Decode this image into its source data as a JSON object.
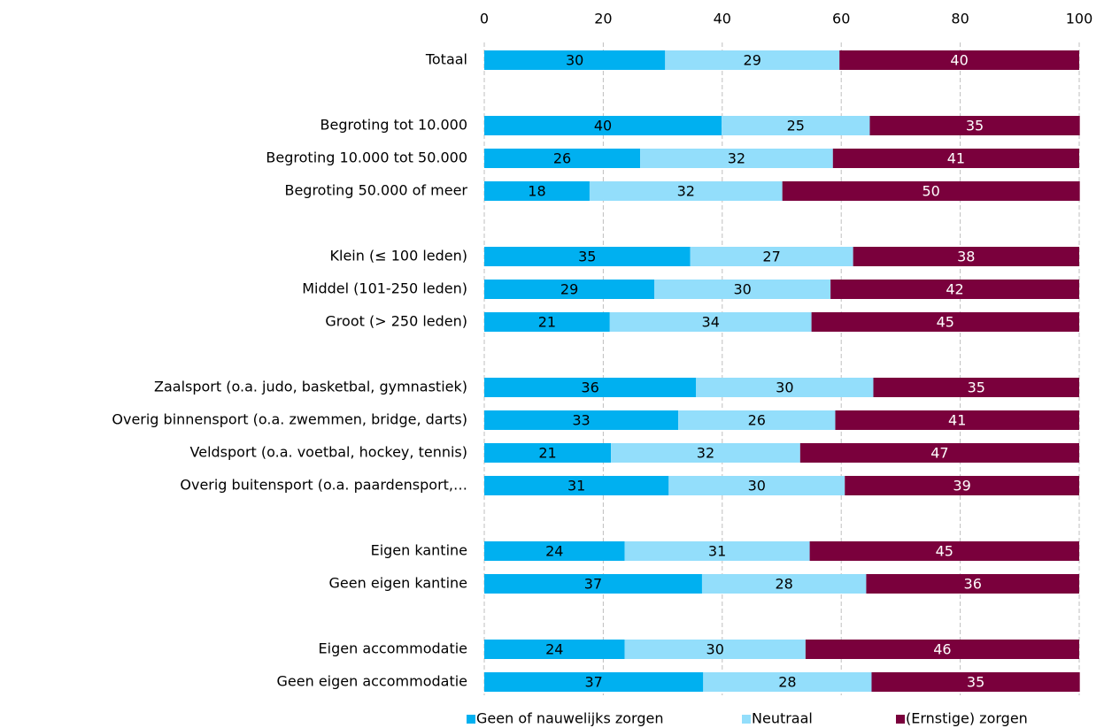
{
  "chart_data": {
    "type": "stacked-bar-horizontal",
    "categories": [
      "Totaal",
      null,
      "Begroting tot 10.000",
      "Begroting 10.000 tot 50.000",
      "Begroting 50.000 of meer",
      null,
      "Klein (≤ 100 leden)",
      "Middel (101-250 leden)",
      "Groot (> 250 leden)",
      null,
      "Zaalsport (o.a. judo, basketbal, gymnastiek)",
      "Overig binnensport (o.a. zwemmen, bridge, darts)",
      "Veldsport (o.a. voetbal, hockey, tennis)",
      "Overig buitensport (o.a. paardensport,…",
      null,
      "Eigen kantine",
      "Geen eigen kantine",
      null,
      "Eigen accommodatie",
      "Geen eigen accommodatie"
    ],
    "series": [
      {
        "name": "Geen of nauwelijks zorgen",
        "color": "#00b0f0",
        "label_color": "#000000",
        "values": [
          30.4,
          null,
          39.9,
          26.2,
          17.7,
          null,
          34.6,
          28.6,
          21.1,
          null,
          35.6,
          32.6,
          21.3,
          31.0,
          null,
          23.6,
          36.6,
          null,
          23.6,
          36.8
        ],
        "value_labels": [
          "30",
          null,
          "40",
          "26",
          "18",
          null,
          "35",
          "29",
          "21",
          null,
          "36",
          "33",
          "21",
          "31",
          null,
          "24",
          "37",
          null,
          "24",
          "37"
        ]
      },
      {
        "name": "Neutraal",
        "color": "#93defb",
        "label_color": "#000000",
        "values": [
          29.3,
          null,
          24.9,
          32.4,
          32.4,
          null,
          27.4,
          29.6,
          33.9,
          null,
          29.8,
          26.4,
          31.8,
          29.6,
          null,
          31.1,
          27.6,
          null,
          30.4,
          28.3
        ],
        "value_labels": [
          "29",
          null,
          "25",
          "32",
          "32",
          null,
          "27",
          "30",
          "34",
          null,
          "30",
          "26",
          "32",
          "30",
          null,
          "31",
          "28",
          null,
          "30",
          "28"
        ]
      },
      {
        "name": "(Ernstige) zorgen",
        "color": "#7a003c",
        "label_color": "#ffffff",
        "values": [
          40.3,
          null,
          35.3,
          41.4,
          50.0,
          null,
          38.0,
          41.8,
          45.0,
          null,
          34.6,
          41.0,
          46.9,
          39.4,
          null,
          45.3,
          35.8,
          null,
          46.0,
          35.0
        ],
        "value_labels": [
          "40",
          null,
          "35",
          "41",
          "50",
          null,
          "38",
          "42",
          "45",
          null,
          "35",
          "41",
          "47",
          "39",
          null,
          "45",
          "36",
          null,
          "46",
          "35"
        ]
      }
    ],
    "xlim": [
      0,
      100
    ],
    "xticks": [
      0,
      20,
      40,
      60,
      80,
      100
    ],
    "grid": true,
    "legend": "bottom"
  }
}
